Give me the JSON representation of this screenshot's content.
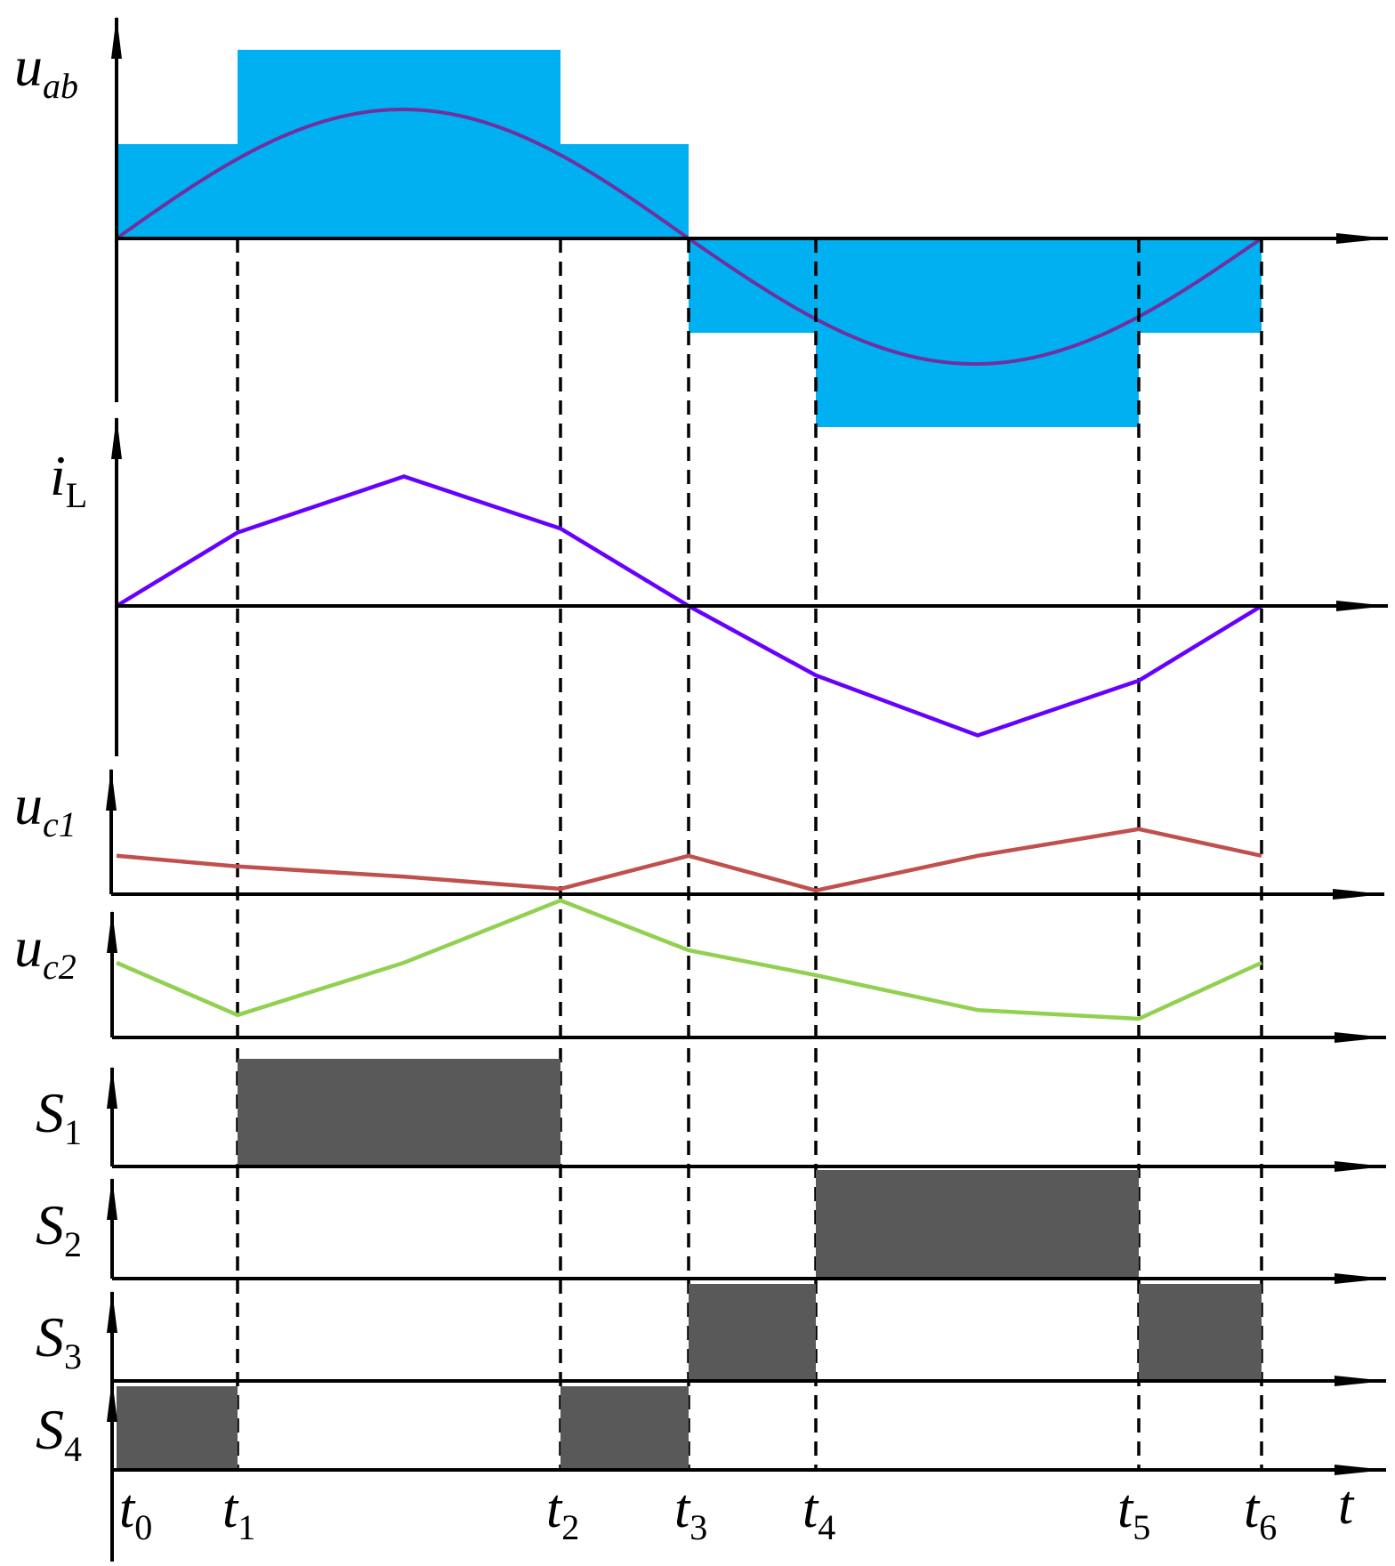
{
  "colors": {
    "uab_fill": "#00b0f0",
    "sine": "#7030a0",
    "iL": "#6600ff",
    "uc1": "#c0504d",
    "uc2": "#92d050",
    "switch": "#595959",
    "axis": "#000000"
  },
  "labels": {
    "uab": {
      "main": "u",
      "sub": "ab"
    },
    "iL": {
      "main": "i",
      "sub": "L"
    },
    "uc1": {
      "main": "u",
      "sub": "c1"
    },
    "uc2": {
      "main": "u",
      "sub": "c2"
    },
    "S1": {
      "main": "S",
      "sub": "1"
    },
    "S2": {
      "main": "S",
      "sub": "2"
    },
    "S3": {
      "main": "S",
      "sub": "3"
    },
    "S4": {
      "main": "S",
      "sub": "4"
    },
    "time_axis": "t"
  },
  "time_markers": [
    {
      "main": "t",
      "sub": "0"
    },
    {
      "main": "t",
      "sub": "1"
    },
    {
      "main": "t",
      "sub": "2"
    },
    {
      "main": "t",
      "sub": "3"
    },
    {
      "main": "t",
      "sub": "4"
    },
    {
      "main": "t",
      "sub": "5"
    },
    {
      "main": "t",
      "sub": "6"
    }
  ],
  "waveforms": {
    "uab_levels": [
      1,
      2,
      1,
      -1,
      -2,
      -1
    ],
    "iL_points": [
      0,
      0.55,
      0.97,
      0.58,
      0,
      -0.52,
      -0.97,
      -0.56,
      0
    ],
    "uc1_points": [
      0.72,
      0.52,
      0.33,
      0.1,
      0.72,
      0.07,
      0.72,
      1.22,
      0.72
    ],
    "uc2_points": [
      0.6,
      0.18,
      0.6,
      1.1,
      0.7,
      0.5,
      0.22,
      0.15,
      0.6
    ],
    "S1_on": [
      [
        1,
        2
      ]
    ],
    "S2_on": [
      [
        4,
        5
      ]
    ],
    "S3_on": [
      [
        3,
        4
      ],
      [
        5,
        6
      ]
    ],
    "S4_on": [
      [
        0,
        1
      ],
      [
        2,
        3
      ]
    ]
  }
}
